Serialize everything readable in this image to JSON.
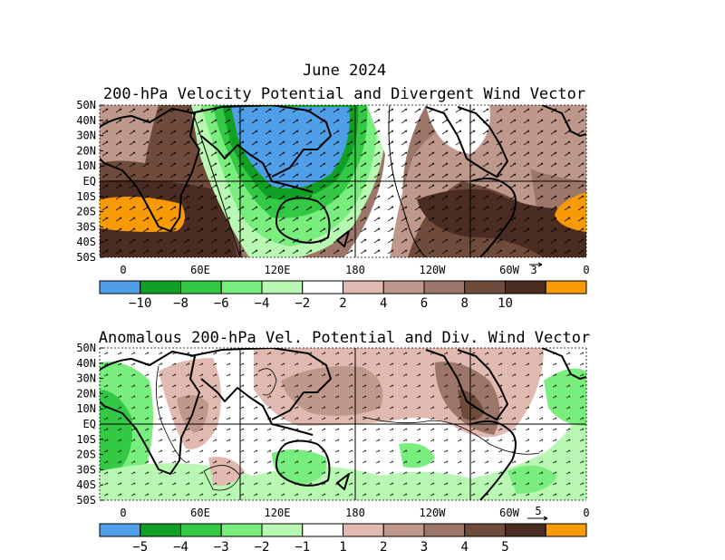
{
  "title": "June 2024",
  "panels": [
    {
      "id": "top",
      "subtitle": "200-hPa Velocity Potential and Divergent Wind Vector",
      "lat_labels": [
        "50N",
        "40N",
        "30N",
        "20N",
        "10N",
        "EQ",
        "10S",
        "20S",
        "30S",
        "40S",
        "50S"
      ],
      "lon_labels": [
        "0",
        "60E",
        "120E",
        "180",
        "120W",
        "60W",
        "0"
      ],
      "vector_ref_label": "3",
      "colorbar": {
        "colors": [
          "#4f9ee8",
          "#11a026",
          "#34c945",
          "#79ed7d",
          "#b9f8b2",
          "#ffffff",
          "#e0b9b0",
          "#bf988c",
          "#9b7669",
          "#6f4b3c",
          "#4a2c22",
          "#f79a06"
        ],
        "labels": [
          "-10",
          "-8",
          "-6",
          "-4",
          "-2",
          "2",
          "4",
          "6",
          "8",
          "10"
        ]
      }
    },
    {
      "id": "bottom",
      "subtitle": "Anomalous 200-hPa Vel. Potential and Div. Wind Vector",
      "lat_labels": [
        "50N",
        "40N",
        "30N",
        "20N",
        "10N",
        "EQ",
        "10S",
        "20S",
        "30S",
        "40S",
        "50S"
      ],
      "lon_labels": [
        "0",
        "60E",
        "120E",
        "180",
        "120W",
        "60W",
        "0"
      ],
      "vector_ref_label": "5",
      "colorbar": {
        "colors": [
          "#4f9ee8",
          "#11a026",
          "#34c945",
          "#79ed7d",
          "#b9f8b2",
          "#ffffff",
          "#e0b9b0",
          "#bf988c",
          "#9b7669",
          "#6f4b3c",
          "#4a2c22",
          "#f79a06"
        ],
        "labels": [
          "-5",
          "-4",
          "-3",
          "-2",
          "-1",
          "1",
          "2",
          "3",
          "4",
          "5"
        ]
      }
    }
  ]
}
